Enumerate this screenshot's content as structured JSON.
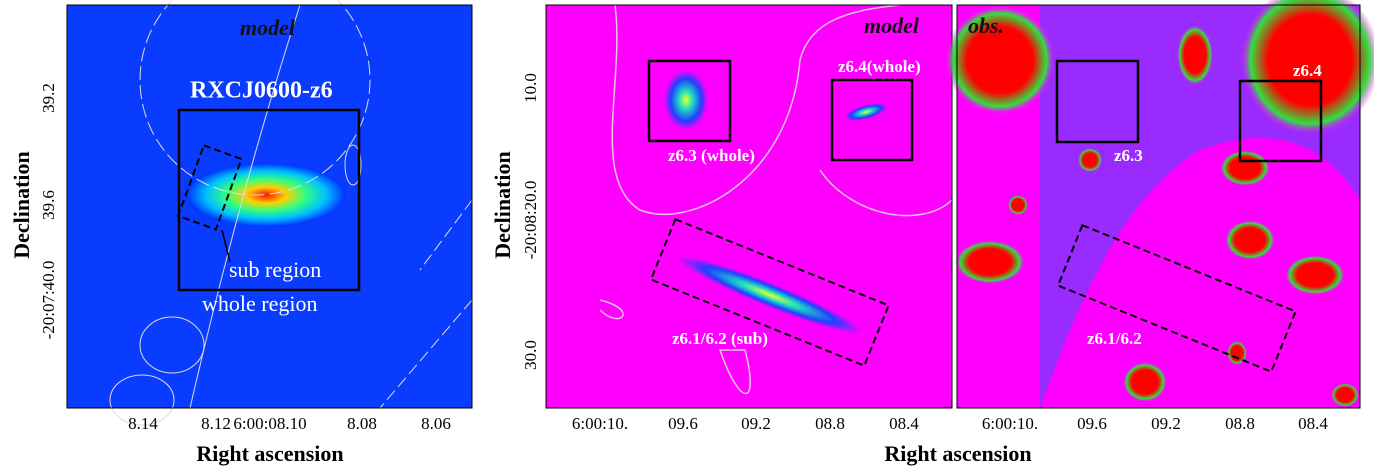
{
  "left_panel": {
    "label": "model",
    "title": "RXCJ0600-z6",
    "sub_label": "sub region",
    "whole_label": "whole region",
    "yticks": [
      "39.2",
      "39.6",
      "-20:07:40.0"
    ],
    "xticks": [
      "8.14",
      "8.12",
      "6:00:08.10",
      "8.08",
      "8.06"
    ],
    "xlabel": "Right ascension",
    "ylabel": "Declination"
  },
  "middle_panel": {
    "label": "model",
    "regions": [
      "z6.3 (whole)",
      "z6.4(whole)",
      "z6.1/6.2 (sub)"
    ],
    "yticks": [
      "10.0",
      "-20:08:20.0",
      "30.0"
    ],
    "xticks": [
      "6:00:10.",
      "09.6",
      "09.2",
      "08.8",
      "08.4"
    ],
    "ylabel": "Declination"
  },
  "right_panel": {
    "label": "obs.",
    "regions": [
      "z6.3",
      "z6.4",
      "z6.1/6.2"
    ],
    "xticks": [
      "6:00:10.",
      "09.6",
      "09.2",
      "08.8",
      "08.4"
    ]
  },
  "xlabel": "Right ascension"
}
